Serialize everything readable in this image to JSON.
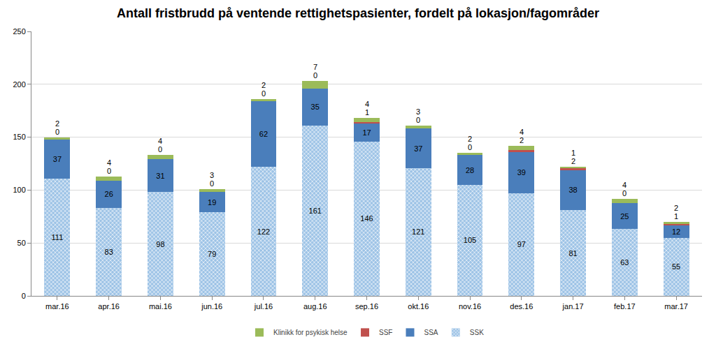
{
  "chart_data": {
    "type": "bar",
    "title": "Antall fristbrudd på ventende rettighetspasienter, fordelt på lokasjon/fagområder",
    "categories": [
      "mar.16",
      "apr.16",
      "mai.16",
      "jun.16",
      "jul.16",
      "aug.16",
      "sep.16",
      "okt.16",
      "nov.16",
      "des.16",
      "jan.17",
      "feb.17",
      "mar.17"
    ],
    "series": [
      {
        "name": "SSK",
        "color": "#9dc3e6",
        "values": [
          111,
          83,
          98,
          79,
          122,
          161,
          146,
          121,
          105,
          97,
          81,
          63,
          55
        ]
      },
      {
        "name": "SSA",
        "color": "#4a7ebb",
        "values": [
          37,
          26,
          31,
          19,
          62,
          35,
          17,
          37,
          28,
          39,
          38,
          25,
          12
        ]
      },
      {
        "name": "SSF",
        "color": "#c0504d",
        "values": [
          0,
          0,
          0,
          0,
          0,
          0,
          1,
          0,
          0,
          2,
          2,
          0,
          1
        ]
      },
      {
        "name": "Klinikk for psykisk helse",
        "color": "#9bbb59",
        "values": [
          2,
          4,
          4,
          3,
          2,
          7,
          4,
          3,
          2,
          4,
          1,
          4,
          2
        ]
      }
    ],
    "ylim": [
      0,
      250
    ],
    "yticks": [
      0,
      50,
      100,
      150,
      200,
      250
    ],
    "stacked": true,
    "data_labels": true,
    "grid": true,
    "legend": "bottom"
  }
}
